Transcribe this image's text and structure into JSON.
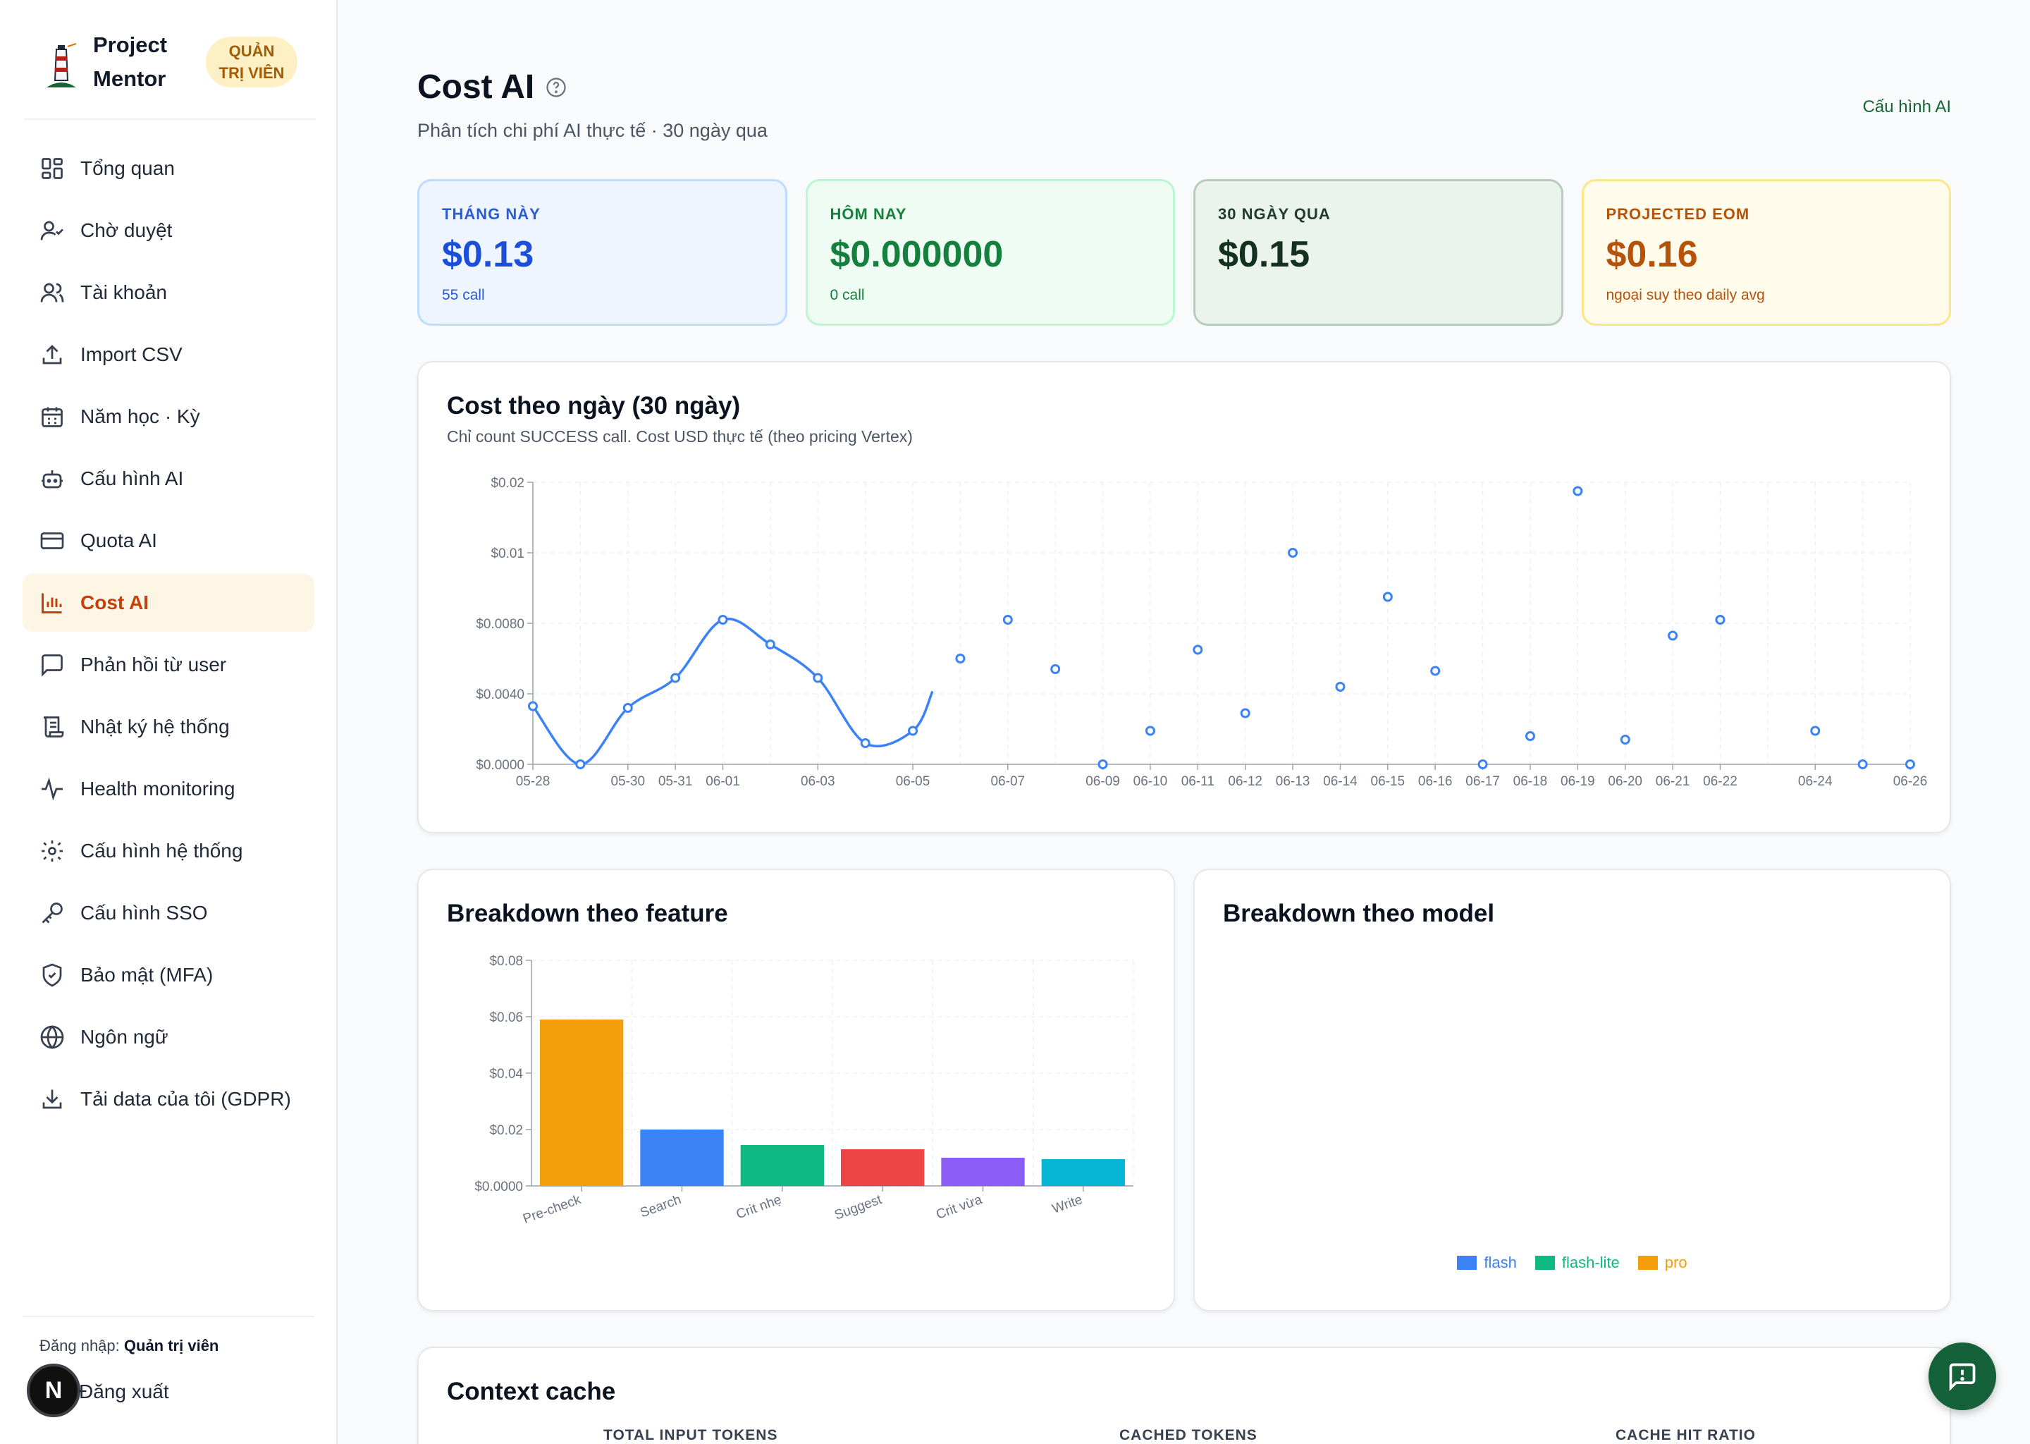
{
  "app": {
    "name_line1": "Project",
    "name_line2": "Mentor",
    "role_line1": "QUẢN",
    "role_line2": "TRỊ VIÊN"
  },
  "sidebar": {
    "items": [
      {
        "label": "Tổng quan",
        "icon": "grid-icon"
      },
      {
        "label": "Chờ duyệt",
        "icon": "user-check-icon"
      },
      {
        "label": "Tài khoản",
        "icon": "users-icon"
      },
      {
        "label": "Import CSV",
        "icon": "upload-icon"
      },
      {
        "label": "Năm học · Kỳ",
        "icon": "calendar-icon"
      },
      {
        "label": "Cấu hình AI",
        "icon": "bot-icon"
      },
      {
        "label": "Quota AI",
        "icon": "credit-card-icon"
      },
      {
        "label": "Cost AI",
        "icon": "bar-chart-icon",
        "active": true
      },
      {
        "label": "Phản hồi từ user",
        "icon": "message-square-icon"
      },
      {
        "label": "Nhật ký hệ thống",
        "icon": "scroll-icon"
      },
      {
        "label": "Health monitoring",
        "icon": "activity-icon"
      },
      {
        "label": "Cấu hình hệ thống",
        "icon": "gear-icon"
      },
      {
        "label": "Cấu hình SSO",
        "icon": "key-icon"
      },
      {
        "label": "Bảo mật (MFA)",
        "icon": "shield-icon"
      },
      {
        "label": "Ngôn ngữ",
        "icon": "globe-icon"
      },
      {
        "label": "Tải data của tôi (GDPR)",
        "icon": "download-icon"
      }
    ],
    "login_prefix": "Đăng nhập:",
    "login_user": "Quản trị viên",
    "logout_label": "Đăng xuất",
    "avatar_letter": "N"
  },
  "page": {
    "title": "Cost AI",
    "subtitle": "Phân tích chi phí AI thực tế · 30 ngày qua",
    "config_link": "Cấu hình AI"
  },
  "kpis": [
    {
      "label": "THÁNG NÀY",
      "value": "$0.13",
      "note": "55 call",
      "bg": "#eef5ff",
      "border": "#bfdbfe",
      "label_color": "#2a5bd7",
      "value_color": "#1d4ed8",
      "note_color": "#2a5bd7"
    },
    {
      "label": "HÔM NAY",
      "value": "$0.000000",
      "note": "0 call",
      "bg": "#effcf3",
      "border": "#bbf7d0",
      "label_color": "#15803d",
      "value_color": "#15803d",
      "note_color": "#15803d"
    },
    {
      "label": "30 NGÀY QUA",
      "value": "$0.15",
      "note": "",
      "bg": "#eaf4ec",
      "border": "#b7cdbc",
      "label_color": "#1f3b2c",
      "value_color": "#14311f",
      "note_color": "#1f3b2c"
    },
    {
      "label": "PROJECTED EOM",
      "value": "$0.16",
      "note": "ngoại suy theo daily avg",
      "bg": "#fffbea",
      "border": "#fde68a",
      "label_color": "#b45309",
      "value_color": "#b45309",
      "note_color": "#b45309"
    }
  ],
  "daily_card": {
    "title": "Cost theo ngày (30 ngày)",
    "subtitle": "Chỉ count SUCCESS call. Cost USD thực tế (theo pricing Vertex)"
  },
  "feature_card": {
    "title": "Breakdown theo feature"
  },
  "model_card": {
    "title": "Breakdown theo model"
  },
  "context_cache": {
    "title": "Context cache",
    "headers": [
      "TOTAL INPUT TOKENS",
      "CACHED TOKENS",
      "CACHE HIT RATIO"
    ]
  },
  "chart_data": [
    {
      "type": "line",
      "title": "Cost theo ngày (30 ngày)",
      "y_tick_labels": [
        "$0.0000",
        "$0.0040",
        "$0.0080",
        "$0.01",
        "$0.02"
      ],
      "ylim": [
        0,
        0.016
      ],
      "grid": true,
      "x_tick_labels": [
        "05-28",
        "05-30",
        "05-31",
        "06-01",
        "06-03",
        "06-05",
        "06-07",
        "06-09",
        "06-10",
        "06-11",
        "06-12",
        "06-13",
        "06-14",
        "06-15",
        "06-16",
        "06-17",
        "06-18",
        "06-19",
        "06-20",
        "06-21",
        "06-22",
        "06-24",
        "06-26"
      ],
      "x": [
        "05-28",
        "05-29",
        "05-30",
        "05-31",
        "06-01",
        "06-02",
        "06-03",
        "06-04",
        "06-05",
        "06-06",
        "06-07",
        "06-08",
        "06-09",
        "06-10",
        "06-11",
        "06-12",
        "06-13",
        "06-14",
        "06-15",
        "06-16",
        "06-17",
        "06-18",
        "06-19",
        "06-20",
        "06-21",
        "06-22",
        "06-23",
        "06-24",
        "06-25",
        "06-26"
      ],
      "series": [
        {
          "values": [
            0.0033,
            0.0,
            0.0032,
            0.0049,
            0.0082,
            0.0068,
            0.0049,
            0.0012,
            0.0019,
            0.006,
            0.0082,
            0.0054,
            0.0,
            0.0019,
            0.0065,
            0.0029,
            0.012,
            0.0044,
            0.0095,
            0.0053,
            0.0,
            0.0016,
            0.0155,
            0.0014,
            0.0073,
            0.0082,
            null,
            0.0019,
            0.0,
            0.0
          ],
          "color": "#3b82f6"
        }
      ],
      "line_segment_through": "06-05"
    },
    {
      "type": "bar",
      "title": "Breakdown theo feature",
      "categories": [
        "Pre-check",
        "Search",
        "Crit nhẹ",
        "Suggest",
        "Crit vừa",
        "Write"
      ],
      "values": [
        0.059,
        0.02,
        0.0145,
        0.013,
        0.01,
        0.0095
      ],
      "colors": [
        "#f59e0b",
        "#3b82f6",
        "#10b981",
        "#ef4444",
        "#8b5cf6",
        "#06b6d4"
      ],
      "y_tick_labels": [
        "$0.0000",
        "$0.02",
        "$0.04",
        "$0.06",
        "$0.08"
      ],
      "ylim": [
        0,
        0.08
      ],
      "grid": true
    },
    {
      "type": "pie",
      "title": "Breakdown theo model",
      "series": [
        {
          "name": "flash",
          "color": "#3b82f6"
        },
        {
          "name": "flash-lite",
          "color": "#10b981"
        },
        {
          "name": "pro",
          "color": "#f59e0b"
        }
      ],
      "legend_position": "bottom"
    }
  ]
}
